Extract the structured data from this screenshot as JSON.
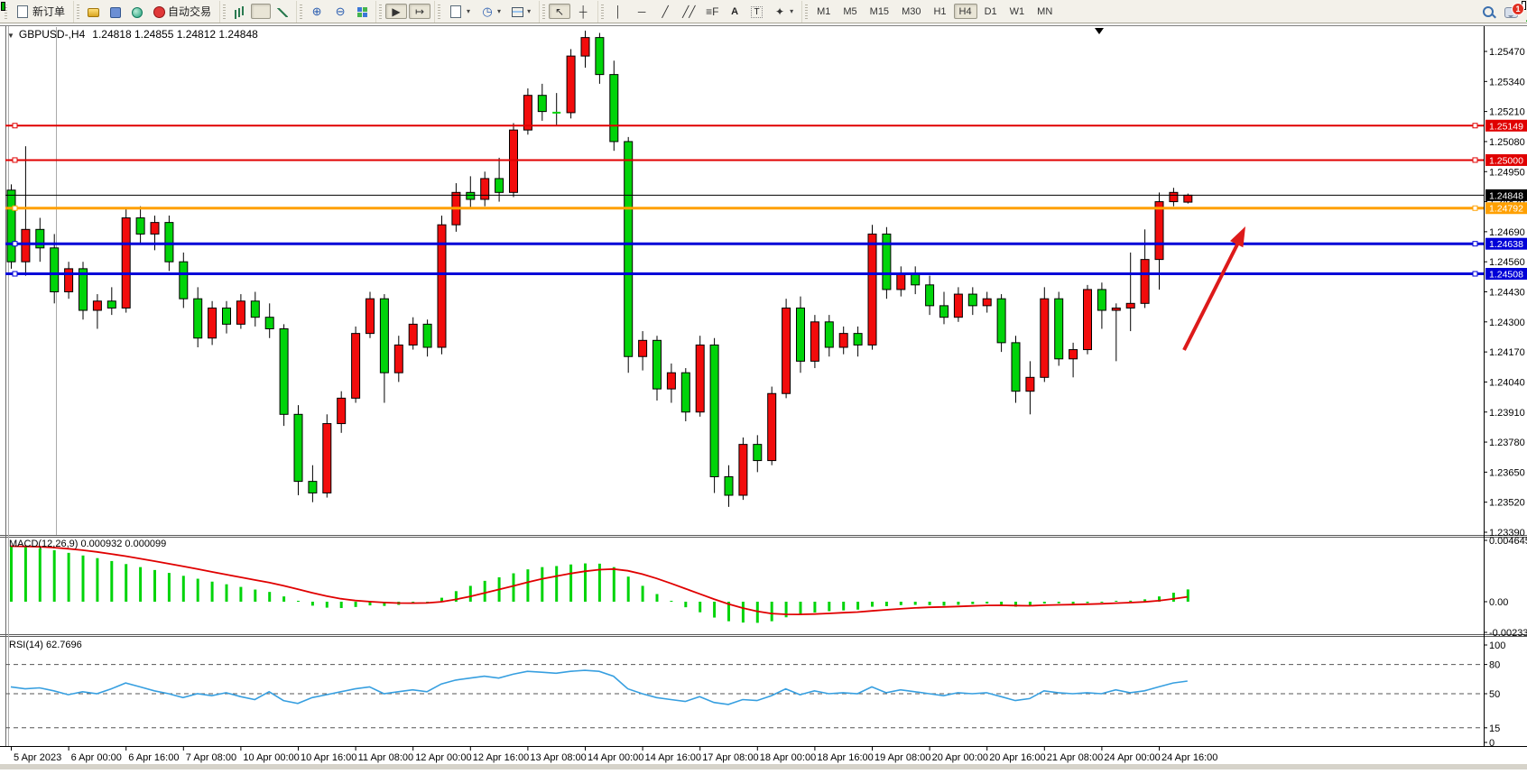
{
  "toolbar": {
    "groups": [
      {
        "items": [
          {
            "name": "new-order-button",
            "icon": "doc-plus",
            "label": "新订单"
          }
        ]
      },
      {
        "items": [
          {
            "name": "market-watch-button",
            "icon": "gold"
          },
          {
            "name": "data-window-button",
            "icon": "person"
          },
          {
            "name": "strategy-tester-button",
            "icon": "signal"
          },
          {
            "name": "auto-trading-button",
            "icon": "autotrade",
            "label": "自动交易"
          }
        ]
      },
      {
        "items": [
          {
            "name": "bar-chart-button",
            "icon": "bars"
          },
          {
            "name": "candlestick-button",
            "icon": "candles",
            "active": true
          },
          {
            "name": "line-chart-button",
            "icon": "linechart"
          }
        ]
      },
      {
        "items": [
          {
            "name": "zoom-in-button",
            "icon": "glyph",
            "glyph": "⊕"
          },
          {
            "name": "zoom-out-button",
            "icon": "glyph",
            "glyph": "⊖"
          },
          {
            "name": "tile-windows-button",
            "icon": "tile"
          }
        ]
      },
      {
        "items": [
          {
            "name": "auto-scroll-button",
            "icon": "dark",
            "glyph": "▶",
            "active": true
          },
          {
            "name": "chart-shift-button",
            "icon": "dark",
            "glyph": "↦",
            "active": true
          }
        ]
      },
      {
        "items": [
          {
            "name": "new-chart-button",
            "icon": "doc-plus",
            "dropdown": true
          },
          {
            "name": "periods-button",
            "icon": "glyph",
            "glyph": "◷",
            "dropdown": true
          },
          {
            "name": "templates-button",
            "icon": "template",
            "dropdown": true
          }
        ]
      },
      {
        "items": [
          {
            "name": "cursor-button",
            "icon": "dark",
            "glyph": "↖",
            "active": true
          },
          {
            "name": "crosshair-button",
            "icon": "dark",
            "glyph": "┼"
          }
        ]
      },
      {
        "items": [
          {
            "name": "vertical-line-button",
            "icon": "dark",
            "glyph": "│"
          },
          {
            "name": "horizontal-line-button",
            "icon": "dark",
            "glyph": "─"
          },
          {
            "name": "trendline-button",
            "icon": "dark",
            "glyph": "╱"
          },
          {
            "name": "channel-button",
            "icon": "dark",
            "glyph": "╱╱"
          },
          {
            "name": "fibonacci-button",
            "icon": "dark",
            "glyph": "≡F"
          },
          {
            "name": "text-button",
            "icon": "text",
            "glyph": "A"
          },
          {
            "name": "text-label-button",
            "icon": "boxT",
            "glyph": "T"
          },
          {
            "name": "arrows-button",
            "icon": "dark",
            "glyph": "✦",
            "dropdown": true
          }
        ]
      }
    ],
    "timeframes": [
      {
        "name": "timeframe-m1",
        "label": "M1"
      },
      {
        "name": "timeframe-m5",
        "label": "M5"
      },
      {
        "name": "timeframe-m15",
        "label": "M15"
      },
      {
        "name": "timeframe-m30",
        "label": "M30"
      },
      {
        "name": "timeframe-h1",
        "label": "H1"
      },
      {
        "name": "timeframe-h4",
        "label": "H4",
        "active": true
      },
      {
        "name": "timeframe-d1",
        "label": "D1"
      },
      {
        "name": "timeframe-w1",
        "label": "W1"
      },
      {
        "name": "timeframe-mn",
        "label": "MN"
      }
    ],
    "search_label": "search",
    "notification_badge": "1"
  },
  "chart": {
    "title": {
      "symbol_period": "GBPUSD-,H4",
      "ohlc": "1.24818 1.24855 1.24812 1.24848"
    },
    "macd_label": "MACD(12,26,9) 0.000932 0.000099",
    "rsi_label": "RSI(14) 62.7696"
  },
  "chart_data": [
    {
      "type": "candlestick",
      "title": "GBPUSD-,H4",
      "current_ohlc": {
        "open": 1.24818,
        "high": 1.24855,
        "low": 1.24812,
        "close": 1.24848
      },
      "ylim": [
        1.23378,
        1.25575
      ],
      "up_color": "#f20c0c",
      "down_color": "#00d40a",
      "y_ticks": [
        "1.25470",
        "1.25340",
        "1.25210",
        "1.25080",
        "1.24950",
        "1.24820",
        "1.24690",
        "1.24560",
        "1.24430",
        "1.24300",
        "1.24170",
        "1.24040",
        "1.23910",
        "1.23780",
        "1.23650",
        "1.23520",
        "1.23390"
      ],
      "x_labels": [
        "5 Apr 2023",
        "6 Apr 00:00",
        "6 Apr 16:00",
        "7 Apr 08:00",
        "10 Apr 00:00",
        "10 Apr 16:00",
        "11 Apr 08:00",
        "12 Apr 00:00",
        "12 Apr 16:00",
        "13 Apr 08:00",
        "14 Apr 00:00",
        "14 Apr 16:00",
        "17 Apr 08:00",
        "18 Apr 00:00",
        "18 Apr 16:00",
        "19 Apr 08:00",
        "20 Apr 00:00",
        "20 Apr 16:00",
        "21 Apr 08:00",
        "24 Apr 00:00",
        "24 Apr 16:00"
      ],
      "label_every_n_candles": 4,
      "hlines": [
        {
          "price": 1.25149,
          "label": "1.25149",
          "color": "#e00000",
          "width": 2,
          "markers": true
        },
        {
          "price": 1.25,
          "label": "1.25000",
          "color": "#e00000",
          "width": 2,
          "markers": true
        },
        {
          "price": 1.24848,
          "label": "1.24848",
          "color": "#000000",
          "width": 1,
          "markers": false
        },
        {
          "price": 1.24792,
          "label": "1.24792",
          "color": "#ffa000",
          "width": 3,
          "markers": true
        },
        {
          "price": 1.24638,
          "label": "1.24638",
          "color": "#0000d8",
          "width": 3,
          "markers": true
        },
        {
          "price": 1.24508,
          "label": "1.24508",
          "color": "#0000d8",
          "width": 3,
          "markers": true
        }
      ],
      "annotation_arrow": {
        "color": "#dd1a1a",
        "direction": "up-right"
      },
      "candles": [
        [
          1.2487,
          1.24895,
          1.2453,
          1.2456
        ],
        [
          1.2456,
          1.2506,
          1.245,
          1.247
        ],
        [
          1.247,
          1.2475,
          1.2456,
          1.2462
        ],
        [
          1.2462,
          1.2468,
          1.2438,
          1.2443
        ],
        [
          1.2443,
          1.2456,
          1.244,
          1.2453
        ],
        [
          1.2453,
          1.2456,
          1.2431,
          1.2435
        ],
        [
          1.2435,
          1.2442,
          1.2427,
          1.2439
        ],
        [
          1.2439,
          1.2445,
          1.2433,
          1.2436
        ],
        [
          1.2436,
          1.2479,
          1.2434,
          1.2475
        ],
        [
          1.2475,
          1.248,
          1.2464,
          1.2468
        ],
        [
          1.2468,
          1.2476,
          1.2461,
          1.2473
        ],
        [
          1.2473,
          1.2476,
          1.2452,
          1.2456
        ],
        [
          1.2456,
          1.246,
          1.2436,
          1.244
        ],
        [
          1.244,
          1.2445,
          1.2419,
          1.2423
        ],
        [
          1.2423,
          1.2439,
          1.242,
          1.2436
        ],
        [
          1.2436,
          1.2439,
          1.2425,
          1.2429
        ],
        [
          1.2429,
          1.2442,
          1.2427,
          1.2439
        ],
        [
          1.2439,
          1.2443,
          1.2428,
          1.2432
        ],
        [
          1.2432,
          1.2438,
          1.2423,
          1.2427
        ],
        [
          1.2427,
          1.2429,
          1.2385,
          1.239
        ],
        [
          1.239,
          1.2394,
          1.2355,
          1.2361
        ],
        [
          1.2361,
          1.2368,
          1.2352,
          1.2356
        ],
        [
          1.2356,
          1.239,
          1.2354,
          1.2386
        ],
        [
          1.2386,
          1.24,
          1.2382,
          1.2397
        ],
        [
          1.2397,
          1.2428,
          1.2395,
          1.2425
        ],
        [
          1.2425,
          1.2443,
          1.2423,
          1.244
        ],
        [
          1.244,
          1.2442,
          1.2395,
          1.2408
        ],
        [
          1.2408,
          1.2424,
          1.2404,
          1.242
        ],
        [
          1.242,
          1.2432,
          1.2418,
          1.2429
        ],
        [
          1.2429,
          1.2431,
          1.2415,
          1.2419
        ],
        [
          1.2419,
          1.2476,
          1.2416,
          1.2472
        ],
        [
          1.2472,
          1.249,
          1.2469,
          1.2486
        ],
        [
          1.2486,
          1.2493,
          1.2479,
          1.2483
        ],
        [
          1.2483,
          1.2495,
          1.248,
          1.2492
        ],
        [
          1.2492,
          1.2501,
          1.2482,
          1.2486
        ],
        [
          1.2486,
          1.2516,
          1.2484,
          1.2513
        ],
        [
          1.2513,
          1.2531,
          1.2511,
          1.2528
        ],
        [
          1.2528,
          1.2533,
          1.2517,
          1.2521
        ],
        [
          1.2521,
          1.2529,
          1.2515,
          1.25205
        ],
        [
          1.25205,
          1.2548,
          1.2518,
          1.2545
        ],
        [
          1.2545,
          1.2556,
          1.254,
          1.2553
        ],
        [
          1.2553,
          1.2555,
          1.2533,
          1.2537
        ],
        [
          1.2537,
          1.2543,
          1.2504,
          1.2508
        ],
        [
          1.2508,
          1.251,
          1.2408,
          1.2415
        ],
        [
          1.2415,
          1.2426,
          1.2409,
          1.2422
        ],
        [
          1.2422,
          1.2424,
          1.2396,
          1.2401
        ],
        [
          1.2401,
          1.2412,
          1.2395,
          1.2408
        ],
        [
          1.2408,
          1.241,
          1.2387,
          1.2391
        ],
        [
          1.2391,
          1.2424,
          1.2389,
          1.242
        ],
        [
          1.242,
          1.2423,
          1.2356,
          1.2363
        ],
        [
          1.2363,
          1.2368,
          1.235,
          1.2355
        ],
        [
          1.2355,
          1.238,
          1.2353,
          1.2377
        ],
        [
          1.2377,
          1.2381,
          1.2365,
          1.237
        ],
        [
          1.237,
          1.2402,
          1.2368,
          1.2399
        ],
        [
          1.2399,
          1.244,
          1.2397,
          1.2436
        ],
        [
          1.2436,
          1.2441,
          1.2408,
          1.2413
        ],
        [
          1.2413,
          1.2433,
          1.241,
          1.243
        ],
        [
          1.243,
          1.2433,
          1.2415,
          1.2419
        ],
        [
          1.2419,
          1.2428,
          1.2416,
          1.2425
        ],
        [
          1.2425,
          1.2428,
          1.2415,
          1.242
        ],
        [
          1.242,
          1.2472,
          1.2418,
          1.2468
        ],
        [
          1.2468,
          1.2471,
          1.244,
          1.2444
        ],
        [
          1.2444,
          1.2454,
          1.2441,
          1.2451
        ],
        [
          1.2451,
          1.2454,
          1.2442,
          1.2446
        ],
        [
          1.2446,
          1.245,
          1.2433,
          1.2437
        ],
        [
          1.2437,
          1.2443,
          1.2429,
          1.2432
        ],
        [
          1.2432,
          1.2445,
          1.243,
          1.2442
        ],
        [
          1.2442,
          1.2445,
          1.2433,
          1.2437
        ],
        [
          1.2437,
          1.2443,
          1.2434,
          1.244
        ],
        [
          1.244,
          1.2442,
          1.2417,
          1.2421
        ],
        [
          1.2421,
          1.2424,
          1.2395,
          1.24
        ],
        [
          1.24,
          1.2413,
          1.239,
          1.2406
        ],
        [
          1.2406,
          1.2445,
          1.2404,
          1.244
        ],
        [
          1.244,
          1.2443,
          1.2411,
          1.2414
        ],
        [
          1.2414,
          1.2421,
          1.2406,
          1.2418
        ],
        [
          1.2418,
          1.2446,
          1.2416,
          1.2444
        ],
        [
          1.2444,
          1.2447,
          1.2427,
          1.2435
        ],
        [
          1.2435,
          1.2438,
          1.2413,
          1.2436
        ],
        [
          1.2436,
          1.246,
          1.2426,
          1.2438
        ],
        [
          1.2438,
          1.247,
          1.2436,
          1.2457
        ],
        [
          1.2457,
          1.2486,
          1.2444,
          1.2482
        ],
        [
          1.2482,
          1.2488,
          1.248,
          1.2486
        ],
        [
          1.24818,
          1.24855,
          1.24812,
          1.24848
        ]
      ]
    },
    {
      "type": "bar",
      "name": "MACD(12,26,9)",
      "current_values": [
        0.000932,
        9.9e-05
      ],
      "ylim": [
        -0.00233,
        0.004645
      ],
      "axis_labels": [
        "0.004645",
        "0.00",
        "-0.00233"
      ],
      "bar_color": "#00d40a",
      "signal_color": "#e00000",
      "values": [
        0.0042,
        0.00415,
        0.00405,
        0.0039,
        0.0037,
        0.0035,
        0.0033,
        0.00308,
        0.00285,
        0.00262,
        0.0024,
        0.00218,
        0.00196,
        0.00174,
        0.00152,
        0.00132,
        0.00112,
        0.00092,
        0.00074,
        0.0004,
        0.0,
        -0.0003,
        -0.00045,
        -0.00048,
        -0.0004,
        -0.00028,
        -0.00032,
        -0.00024,
        -0.00012,
        -6e-05,
        0.0003,
        0.0008,
        0.0012,
        0.00158,
        0.00185,
        0.00215,
        0.00245,
        0.00262,
        0.0027,
        0.00282,
        0.0029,
        0.00288,
        0.00262,
        0.0019,
        0.0012,
        0.00058,
        6e-05,
        -0.00042,
        -0.0008,
        -0.0012,
        -0.00148,
        -0.00158,
        -0.0016,
        -0.00148,
        -0.00118,
        -0.001,
        -0.00082,
        -0.00072,
        -0.00066,
        -0.0006,
        -0.00038,
        -0.00034,
        -0.00026,
        -0.00024,
        -0.00026,
        -0.0003,
        -0.00024,
        -0.00018,
        -0.00014,
        -0.00024,
        -0.00038,
        -0.00034,
        -0.00014,
        -0.00012,
        -0.00016,
        -0.0001,
        -2e-05,
        6e-05,
        8e-05,
        0.00018,
        0.0004,
        0.00068,
        0.00093
      ]
    },
    {
      "type": "line",
      "name": "RSI(14)",
      "current_value": 62.7696,
      "ylim": [
        0,
        100
      ],
      "axis_labels": [
        "100",
        "80",
        "50",
        "15",
        "0"
      ],
      "levels": [
        80,
        50,
        15
      ],
      "line_color": "#379fe0",
      "values": [
        57,
        55,
        56,
        53,
        49,
        52,
        50,
        55,
        61,
        57,
        53,
        50,
        46,
        50,
        48,
        51,
        47,
        44,
        52,
        43,
        40,
        46,
        49,
        52,
        55,
        57,
        50,
        52,
        54,
        52,
        60,
        64,
        66,
        68,
        66,
        70,
        73,
        72,
        71,
        73,
        74,
        73,
        68,
        55,
        50,
        46,
        44,
        42,
        47,
        41,
        39,
        44,
        43,
        48,
        55,
        49,
        53,
        50,
        51,
        50,
        57,
        51,
        54,
        52,
        50,
        48,
        51,
        50,
        51,
        47,
        43,
        45,
        53,
        51,
        50,
        51,
        50,
        54,
        51,
        53,
        57,
        61,
        63
      ]
    }
  ]
}
